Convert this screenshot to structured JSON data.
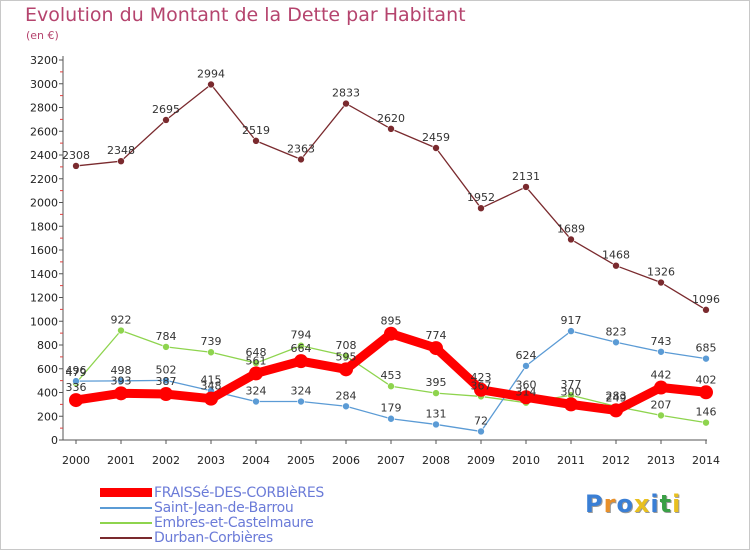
{
  "title": "Evolution du Montant de la Dette par Habitant",
  "subtitle": "(en €)",
  "logo": {
    "text": "Proxiti",
    "colors": [
      "#3a7fd5",
      "#e8902a",
      "#3a7fd5",
      "#e8c020",
      "#3a7fd5",
      "#3aa046",
      "#e8c020"
    ]
  },
  "chart_data": {
    "type": "line",
    "x": [
      "2000",
      "2001",
      "2002",
      "2003",
      "2004",
      "2005",
      "2006",
      "2007",
      "2008",
      "2009",
      "2010",
      "2011",
      "2012",
      "2013",
      "2014"
    ],
    "yticks": [
      "0",
      "200",
      "400",
      "600",
      "800",
      "1000",
      "1200",
      "1400",
      "1600",
      "1800",
      "2000",
      "2200",
      "2400",
      "2600",
      "2800",
      "3000",
      "3200"
    ],
    "ylim": [
      0,
      3200
    ],
    "grid": false,
    "legend_placement": "bottom-left",
    "series": [
      {
        "name": "FRAISSé-DES-CORBIèRES",
        "color": "#ff0000",
        "width": 9,
        "marker": 7,
        "values": [
          336,
          393,
          387,
          348,
          561,
          664,
          595,
          895,
          774,
          423,
          360,
          300,
          249,
          442,
          402
        ],
        "labels": [
          "336",
          "393",
          "387",
          "348",
          "561",
          "664",
          "595",
          "895",
          "774",
          "423",
          "360",
          "300",
          "249",
          "442",
          "402"
        ]
      },
      {
        "name": "Saint-Jean-de-Barrou",
        "color": "#5b9bd5",
        "width": 1.3,
        "marker": 3.5,
        "values": [
          496,
          498,
          502,
          415,
          324,
          324,
          284,
          179,
          131,
          72,
          624,
          917,
          823,
          743,
          685
        ],
        "labels": [
          "496",
          "498",
          "502",
          "415",
          "324",
          "324",
          "284",
          "179",
          "131",
          "72",
          "624",
          "917",
          "823",
          "743",
          "685"
        ]
      },
      {
        "name": "Embres-et-Castelmaure",
        "color": "#8ed44e",
        "width": 1.3,
        "marker": 3.5,
        "values": [
          479,
          922,
          784,
          739,
          648,
          794,
          708,
          453,
          395,
          367,
          314,
          377,
          283,
          207,
          146
        ],
        "labels": [
          "479",
          "922",
          "784",
          "739",
          "648",
          "794",
          "708",
          "453",
          "395",
          "367",
          "314",
          "377",
          "283",
          "207",
          "146"
        ]
      },
      {
        "name": "Durban-Corbières",
        "color": "#7a2a2e",
        "width": 1.3,
        "marker": 3.5,
        "values": [
          2308,
          2348,
          2695,
          2994,
          2519,
          2363,
          2833,
          2620,
          2459,
          1952,
          2131,
          1689,
          1468,
          1326,
          1096
        ],
        "labels": [
          "2308",
          "2348",
          "2695",
          "2994",
          "2519",
          "2363",
          "2833",
          "2620",
          "2459",
          "1952",
          "2131",
          "1689",
          "1468",
          "1326",
          "1096"
        ]
      }
    ]
  }
}
